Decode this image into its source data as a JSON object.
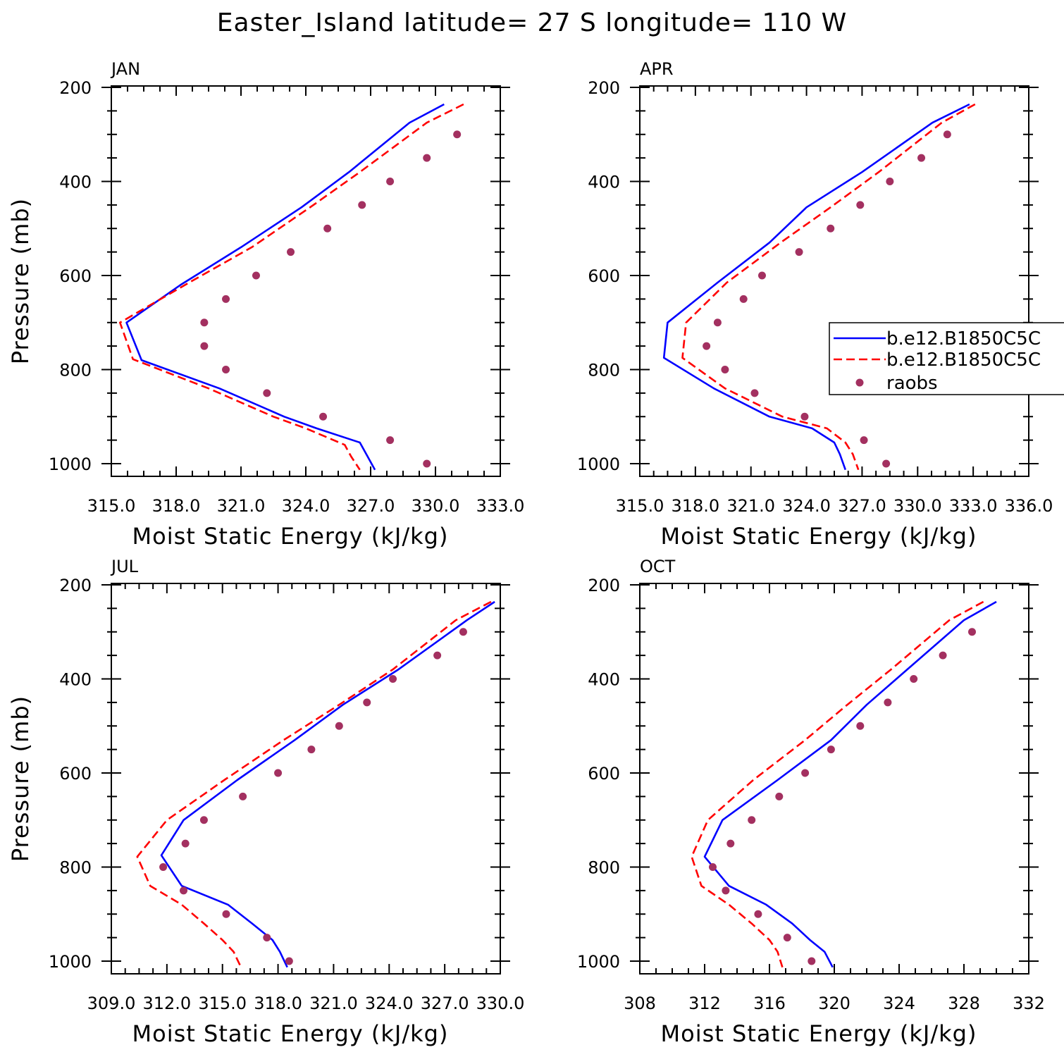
{
  "title": "Easter_Island  latitude= 27 S longitude= 110 W",
  "colors": {
    "model1": "#0000ff",
    "model2": "#ff0000",
    "raobs": "#a33060"
  },
  "legend": {
    "entries": [
      {
        "label": "b.e12.B1850C5C",
        "style": "solid",
        "color": "#0000ff"
      },
      {
        "label": "b.e12.B1850C5C",
        "style": "dashed",
        "color": "#ff0000"
      },
      {
        "label": "raobs",
        "style": "dot",
        "color": "#a33060"
      }
    ]
  },
  "chart_data": [
    {
      "type": "line",
      "panel": "JAN",
      "xlabel": "Moist Static Energy (kJ/kg)",
      "ylabel": "Pressure (mb)",
      "xlim": [
        315,
        333
      ],
      "xticks": [
        315,
        318,
        321,
        324,
        327,
        330,
        333
      ],
      "xtick_labels": [
        "315.0",
        "318.0",
        "321.0",
        "324.0",
        "327.0",
        "330.0",
        "333.0"
      ],
      "ylim": [
        1025,
        200
      ],
      "yticks": [
        200,
        400,
        600,
        800,
        1000
      ],
      "ytick_labels": [
        "200",
        "400",
        "600",
        "800",
        "1000"
      ],
      "series": [
        {
          "name": "b.e12.B1850C5C",
          "style": "solid",
          "x": [
            330.4,
            328.8,
            326.0,
            323.8,
            321.0,
            318.2,
            315.7,
            316.4,
            320.0,
            323.0,
            324.5,
            326.5,
            326.8,
            327.2
          ],
          "y": [
            236,
            275,
            380,
            455,
            540,
            620,
            700,
            780,
            840,
            900,
            925,
            955,
            980,
            1013
          ]
        },
        {
          "name": "b.e12.B1850C5C",
          "style": "dashed",
          "x": [
            331.3,
            329.6,
            326.5,
            324.2,
            321.5,
            318.6,
            315.4,
            316.0,
            319.5,
            322.5,
            324.0,
            325.8,
            326.1,
            326.5
          ],
          "y": [
            236,
            275,
            380,
            455,
            540,
            615,
            700,
            778,
            840,
            900,
            925,
            960,
            985,
            1013
          ]
        },
        {
          "name": "raobs",
          "style": "dot",
          "x": [
            331.0,
            329.6,
            327.9,
            326.6,
            325.0,
            323.3,
            321.7,
            320.3,
            319.3,
            319.3,
            320.3,
            322.2,
            324.8,
            327.9,
            329.6
          ],
          "y": [
            300,
            350,
            400,
            450,
            500,
            550,
            600,
            650,
            700,
            750,
            800,
            850,
            900,
            950,
            1000
          ]
        }
      ]
    },
    {
      "type": "line",
      "panel": "APR",
      "xlabel": "Moist Static Energy (kJ/kg)",
      "ylabel": "",
      "xlim": [
        315,
        336
      ],
      "xticks": [
        315,
        318,
        321,
        324,
        327,
        330,
        333,
        336
      ],
      "xtick_labels": [
        "315.0",
        "318.0",
        "321.0",
        "324.0",
        "327.0",
        "330.0",
        "333.0",
        "336.0"
      ],
      "ylim": [
        1025,
        200
      ],
      "yticks": [
        200,
        400,
        600,
        800,
        1000
      ],
      "ytick_labels": [
        "200",
        "400",
        "600",
        "800",
        "1000"
      ],
      "series": [
        {
          "name": "b.e12.B1850C5C",
          "style": "solid",
          "x": [
            332.8,
            330.8,
            327.0,
            324.0,
            322.0,
            319.2,
            316.5,
            316.3,
            319.0,
            322.0,
            324.3,
            325.5,
            325.8,
            326.1
          ],
          "y": [
            236,
            275,
            380,
            455,
            530,
            615,
            700,
            775,
            840,
            900,
            925,
            955,
            980,
            1013
          ]
        },
        {
          "name": "b.e12.B1850C5C",
          "style": "dashed",
          "x": [
            333.1,
            331.3,
            327.9,
            325.3,
            322.6,
            319.7,
            317.5,
            317.3,
            319.6,
            322.7,
            325.1,
            326.1,
            326.5,
            326.8
          ],
          "y": [
            236,
            275,
            380,
            455,
            530,
            615,
            700,
            775,
            840,
            900,
            925,
            955,
            980,
            1013
          ]
        },
        {
          "name": "raobs",
          "style": "dot",
          "x": [
            331.6,
            330.2,
            328.5,
            326.9,
            325.3,
            323.6,
            321.6,
            320.6,
            319.2,
            318.6,
            319.6,
            321.2,
            323.9,
            327.1,
            328.3
          ],
          "y": [
            300,
            350,
            400,
            450,
            500,
            550,
            600,
            650,
            700,
            750,
            800,
            850,
            900,
            950,
            1000
          ]
        }
      ]
    },
    {
      "type": "line",
      "panel": "JUL",
      "xlabel": "Moist Static Energy (kJ/kg)",
      "ylabel": "Pressure (mb)",
      "xlim": [
        309,
        330
      ],
      "xticks": [
        309,
        312,
        315,
        318,
        321,
        324,
        327,
        330
      ],
      "xtick_labels": [
        "309.0",
        "312.0",
        "315.0",
        "318.0",
        "321.0",
        "324.0",
        "327.0",
        "330.0"
      ],
      "ylim": [
        1025,
        200
      ],
      "yticks": [
        200,
        400,
        600,
        800,
        1000
      ],
      "ytick_labels": [
        "200",
        "400",
        "600",
        "800",
        "1000"
      ],
      "series": [
        {
          "name": "b.e12.B1850C5C",
          "style": "solid",
          "x": [
            329.7,
            328.2,
            324.5,
            321.5,
            318.9,
            315.8,
            312.9,
            311.7,
            312.8,
            315.3,
            316.6,
            317.7,
            318.1,
            318.5
          ],
          "y": [
            236,
            275,
            380,
            455,
            530,
            615,
            700,
            775,
            840,
            880,
            920,
            955,
            980,
            1013
          ]
        },
        {
          "name": "b.e12.B1850C5C",
          "style": "dashed",
          "x": [
            329.5,
            327.6,
            324.2,
            321.3,
            318.3,
            315.1,
            312.0,
            310.4,
            311.1,
            312.8,
            314.0,
            315.0,
            315.6,
            316.0
          ],
          "y": [
            236,
            275,
            380,
            455,
            530,
            615,
            700,
            778,
            840,
            880,
            920,
            955,
            980,
            1013
          ]
        },
        {
          "name": "raobs",
          "style": "dot",
          "x": [
            328.0,
            326.6,
            324.2,
            322.8,
            321.3,
            319.8,
            318.0,
            316.1,
            314.0,
            313.0,
            311.8,
            312.9,
            315.2,
            317.4,
            318.6
          ],
          "y": [
            300,
            350,
            400,
            450,
            500,
            550,
            600,
            650,
            700,
            750,
            800,
            850,
            900,
            950,
            1000
          ]
        }
      ]
    },
    {
      "type": "line",
      "panel": "OCT",
      "xlabel": "Moist Static Energy (kJ/kg)",
      "ylabel": "",
      "xlim": [
        308,
        332
      ],
      "xticks": [
        308,
        312,
        316,
        320,
        324,
        328,
        332
      ],
      "xtick_labels": [
        "308",
        "312",
        "316",
        "320",
        "324",
        "328",
        "332"
      ],
      "ylim": [
        1025,
        200
      ],
      "yticks": [
        200,
        400,
        600,
        800,
        1000
      ],
      "ytick_labels": [
        "200",
        "400",
        "600",
        "800",
        "1000"
      ],
      "series": [
        {
          "name": "b.e12.B1850C5C",
          "style": "solid",
          "x": [
            330.0,
            328.0,
            324.5,
            322.0,
            319.8,
            316.5,
            313.1,
            312.0,
            313.5,
            315.8,
            317.4,
            318.5,
            319.4,
            319.9
          ],
          "y": [
            236,
            275,
            380,
            455,
            530,
            615,
            700,
            778,
            840,
            880,
            920,
            955,
            980,
            1013
          ]
        },
        {
          "name": "b.e12.B1850C5C",
          "style": "dashed",
          "x": [
            329.2,
            327.1,
            323.5,
            320.8,
            318.2,
            315.0,
            312.2,
            311.2,
            311.8,
            313.5,
            314.9,
            316.0,
            316.5,
            316.8
          ],
          "y": [
            236,
            275,
            380,
            455,
            530,
            615,
            700,
            778,
            840,
            880,
            920,
            955,
            980,
            1013
          ]
        },
        {
          "name": "raobs",
          "style": "dot",
          "x": [
            328.5,
            326.7,
            324.9,
            323.3,
            321.6,
            319.8,
            318.2,
            316.6,
            314.9,
            313.6,
            312.5,
            313.3,
            315.3,
            317.1,
            318.6
          ],
          "y": [
            300,
            350,
            400,
            450,
            500,
            550,
            600,
            650,
            700,
            750,
            800,
            850,
            900,
            950,
            1000
          ]
        }
      ]
    }
  ]
}
